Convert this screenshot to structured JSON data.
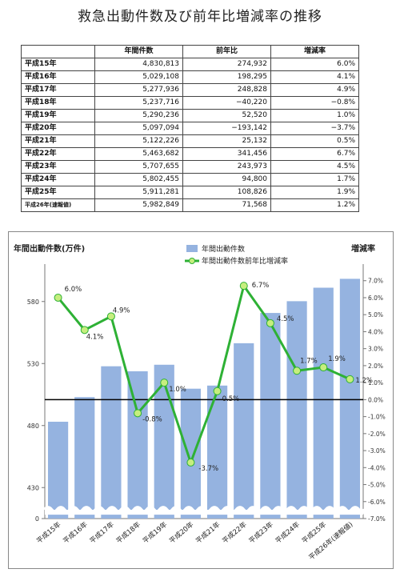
{
  "title": "救急出動件数及び前年比増減率の推移",
  "table": {
    "headers": [
      "",
      "年間件数",
      "前年比",
      "増減率"
    ],
    "rows": [
      {
        "year": "平成15年",
        "count": "4,830,813",
        "diff": "274,932",
        "rate": "6.0%"
      },
      {
        "year": "平成16年",
        "count": "5,029,108",
        "diff": "198,295",
        "rate": "4.1%"
      },
      {
        "year": "平成17年",
        "count": "5,277,936",
        "diff": "248,828",
        "rate": "4.9%"
      },
      {
        "year": "平成18年",
        "count": "5,237,716",
        "diff": "−40,220",
        "rate": "−0.8%"
      },
      {
        "year": "平成19年",
        "count": "5,290,236",
        "diff": "52,520",
        "rate": "1.0%"
      },
      {
        "year": "平成20年",
        "count": "5,097,094",
        "diff": "−193,142",
        "rate": "−3.7%"
      },
      {
        "year": "平成21年",
        "count": "5,122,226",
        "diff": "25,132",
        "rate": "0.5%"
      },
      {
        "year": "平成22年",
        "count": "5,463,682",
        "diff": "341,456",
        "rate": "6.7%"
      },
      {
        "year": "平成23年",
        "count": "5,707,655",
        "diff": "243,973",
        "rate": "4.5%"
      },
      {
        "year": "平成24年",
        "count": "5,802,455",
        "diff": "94,800",
        "rate": "1.7%"
      },
      {
        "year": "平成25年",
        "count": "5,911,281",
        "diff": "108,826",
        "rate": "1.9%"
      },
      {
        "year": "平成26年(速報値)",
        "count": "5,982,849",
        "diff": "71,568",
        "rate": "1.2%"
      }
    ]
  },
  "chart_data": {
    "type": "bar+line",
    "categories": [
      "平成15年",
      "平成16年",
      "平成17年",
      "平成18年",
      "平成19年",
      "平成20年",
      "平成21年",
      "平成22年",
      "平成23年",
      "平成24年",
      "平成25年",
      "平成26年(速報値)"
    ],
    "series": [
      {
        "name": "年間出動件数",
        "type": "bar",
        "axis": "left",
        "values": [
          483.0813,
          502.9108,
          527.7936,
          523.7716,
          529.0236,
          509.7094,
          512.2226,
          546.3682,
          570.7655,
          580.2455,
          591.1281,
          598.2849
        ]
      },
      {
        "name": "年間出動件数前年比増減率",
        "type": "line",
        "axis": "right",
        "values": [
          6.0,
          4.1,
          4.9,
          -0.8,
          1.0,
          -3.7,
          0.5,
          6.7,
          4.5,
          1.7,
          1.9,
          1.2
        ]
      }
    ],
    "point_labels": [
      "6.0%",
      "4.1%",
      "4.9%",
      "-0.8%",
      "1.0%",
      "-3.7%",
      "0.5%",
      "6.7%",
      "4.5%",
      "1.7%",
      "1.9%",
      "1.2%"
    ],
    "ylabel_left": "年間出動件数(万件)",
    "ylabel_right": "増減率",
    "left_ticks": [
      "0",
      "430",
      "480",
      "530",
      "580"
    ],
    "left_axis_break": true,
    "left_scale_range": [
      405,
      605
    ],
    "right_ticks": [
      "7.0%",
      "6.0%",
      "5.0%",
      "4.0%",
      "3.0%",
      "2.0%",
      "1.0%",
      "0.0%",
      "-1.0%",
      "-2.0%",
      "-3.0%",
      "-4.0%",
      "-5.0%",
      "-6.0%",
      "-7.0%"
    ],
    "right_range": [
      -7,
      7.6
    ],
    "grid": false,
    "legend_position": "top-center",
    "colors": {
      "bar": "#95B3E0",
      "line": "#2EB135",
      "marker": "#C6EE7E",
      "zero_line": "#000000"
    }
  }
}
